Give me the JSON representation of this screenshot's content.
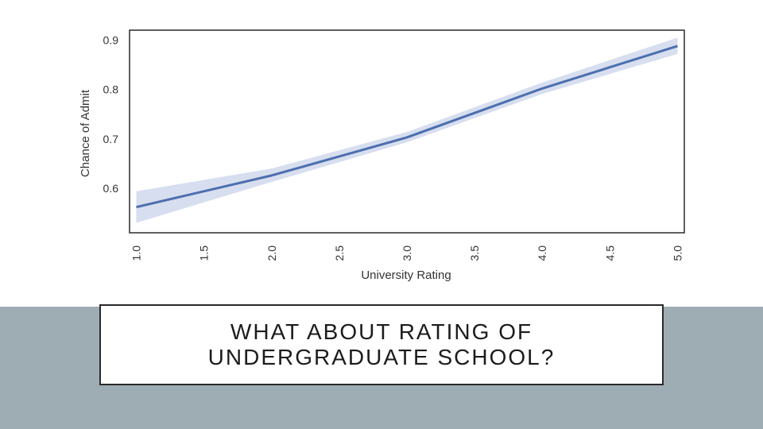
{
  "slide": {
    "title": "WHAT ABOUT RATING OF UNDERGRADUATE SCHOOL?"
  },
  "colors": {
    "line": "#4c6fae",
    "band": "#c9d3ea",
    "footer": "#9eacb3"
  },
  "chart_data": {
    "type": "line",
    "xlabel": "University Rating",
    "ylabel": "Chance of Admit",
    "xlim": [
      0.95,
      5.05
    ],
    "ylim": [
      0.51,
      0.92
    ],
    "grid": false,
    "x_ticks": [
      "1.0",
      "1.5",
      "2.0",
      "2.5",
      "3.0",
      "3.5",
      "4.0",
      "4.5",
      "5.0"
    ],
    "y_ticks": [
      "0.6",
      "0.7",
      "0.8",
      "0.9"
    ],
    "x": [
      1,
      2,
      3,
      4,
      5
    ],
    "series": [
      {
        "values": [
          0.562,
          0.626,
          0.703,
          0.802,
          0.888
        ],
        "ci_lower": [
          0.53,
          0.613,
          0.693,
          0.791,
          0.872
        ],
        "ci_upper": [
          0.594,
          0.64,
          0.714,
          0.814,
          0.905
        ]
      }
    ]
  }
}
